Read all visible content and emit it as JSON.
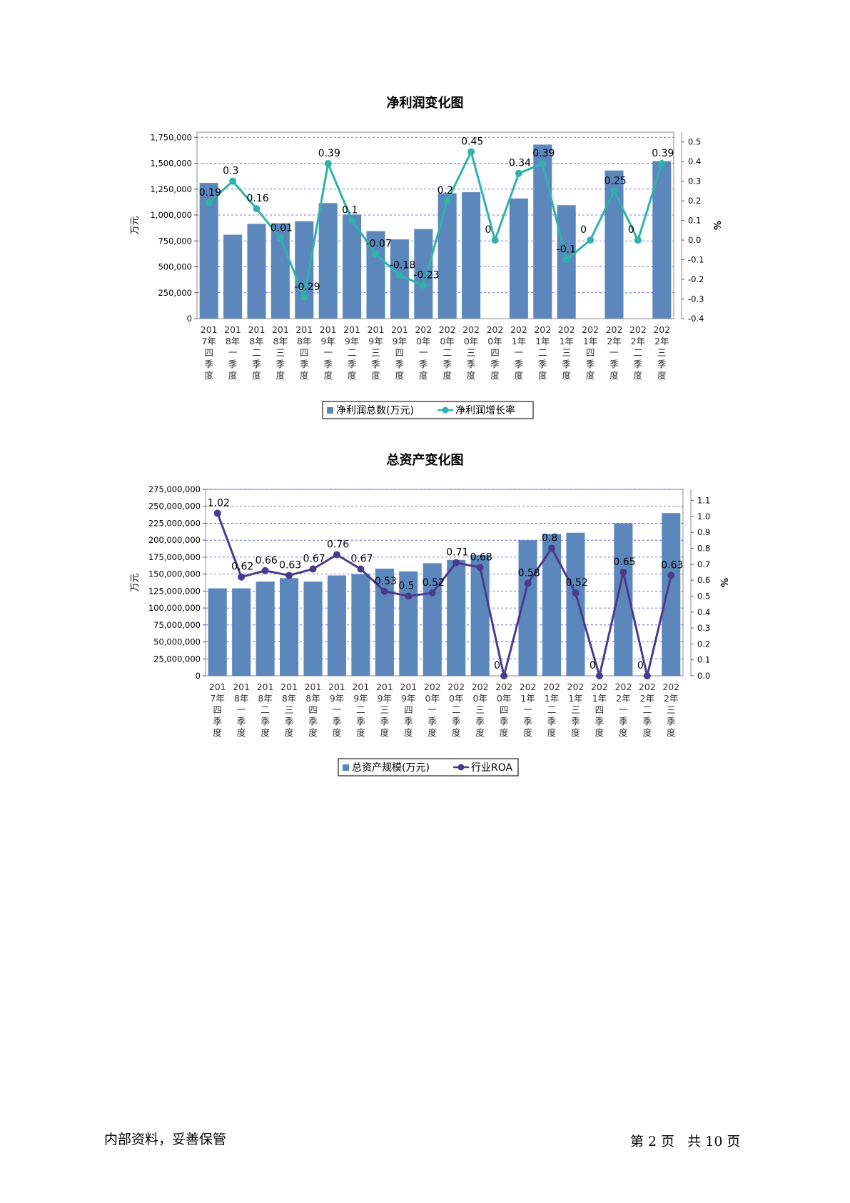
{
  "chart_data": [
    {
      "type": "bar",
      "title": "净利润变化图",
      "ylabel": "万元",
      "y2label": "%",
      "categories": [
        "2017年四季度",
        "2018年一季度",
        "2018年二季度",
        "2018年三季度",
        "2018年四季度",
        "2019年一季度",
        "2019年二季度",
        "2019年三季度",
        "2019年四季度",
        "2020年一季度",
        "2020年二季度",
        "2020年三季度",
        "2020年四季度",
        "2021年一季度",
        "2021年二季度",
        "2021年三季度",
        "2021年四季度",
        "2022年一季度",
        "2022年二季度",
        "2022年三季度"
      ],
      "category_lines": [
        [
          "201",
          "7年",
          "四",
          "季",
          "度"
        ],
        [
          "201",
          "8年",
          "一",
          "季",
          "度"
        ],
        [
          "201",
          "8年",
          "二",
          "季",
          "度"
        ],
        [
          "201",
          "8年",
          "三",
          "季",
          "度"
        ],
        [
          "201",
          "8年",
          "四",
          "季",
          "度"
        ],
        [
          "201",
          "9年",
          "一",
          "季",
          "度"
        ],
        [
          "201",
          "9年",
          "二",
          "季",
          "度"
        ],
        [
          "201",
          "9年",
          "三",
          "季",
          "度"
        ],
        [
          "201",
          "9年",
          "四",
          "季",
          "度"
        ],
        [
          "202",
          "0年",
          "一",
          "季",
          "度"
        ],
        [
          "202",
          "0年",
          "二",
          "季",
          "度"
        ],
        [
          "202",
          "0年",
          "三",
          "季",
          "度"
        ],
        [
          "202",
          "0年",
          "四",
          "季",
          "度"
        ],
        [
          "202",
          "1年",
          "一",
          "季",
          "度"
        ],
        [
          "202",
          "1年",
          "二",
          "季",
          "度"
        ],
        [
          "202",
          "1年",
          "三",
          "季",
          "度"
        ],
        [
          "202",
          "1年",
          "四",
          "季",
          "度"
        ],
        [
          "202",
          "2年",
          "一",
          "季",
          "度"
        ],
        [
          "202",
          "2年",
          "二",
          "季",
          "度"
        ],
        [
          "202",
          "2年",
          "三",
          "季",
          "度"
        ]
      ],
      "ylim": [
        0,
        1800000
      ],
      "y_ticks": [
        "0",
        "250,000",
        "500,000",
        "750,000",
        "1,000,000",
        "1,250,000",
        "1,500,000",
        "1,750,000"
      ],
      "y_tick_values": [
        0,
        250000,
        500000,
        750000,
        1000000,
        1250000,
        1500000,
        1750000
      ],
      "y2lim": [
        -0.4,
        0.55
      ],
      "y2_ticks": [
        "-0.4",
        "-0.3",
        "-0.2",
        "-0.1",
        "0.0",
        "0.1",
        "0.2",
        "0.3",
        "0.4",
        "0.5"
      ],
      "y2_tick_values": [
        -0.4,
        -0.3,
        -0.2,
        -0.1,
        0.0,
        0.1,
        0.2,
        0.3,
        0.4,
        0.5
      ],
      "series": [
        {
          "name": "净利润总数(万元)",
          "kind": "bar",
          "color": "#5b87bd",
          "values": [
            1310000,
            810000,
            915000,
            920000,
            940000,
            1115000,
            1005000,
            845000,
            765000,
            865000,
            1210000,
            1220000,
            0,
            1160000,
            1680000,
            1095000,
            0,
            1430000,
            0,
            1520000
          ]
        },
        {
          "name": "净利润增长率",
          "kind": "line",
          "color": "#2db3aa",
          "values": [
            0.19,
            0.3,
            0.16,
            0.01,
            -0.29,
            0.39,
            0.1,
            -0.07,
            -0.18,
            -0.23,
            0.2,
            0.45,
            0,
            0.34,
            0.39,
            -0.1,
            0,
            0.25,
            0,
            0.39
          ],
          "labels": [
            "0.19",
            "0.3",
            "0.16",
            "0.01",
            "-0.29",
            "0.39",
            "0.1",
            "-0.07",
            "-0.18",
            "-0.23",
            "0.2",
            "0.45",
            "0",
            "0.34",
            "0.39",
            "-0.1",
            "0",
            "0.25",
            "0",
            "0.39"
          ]
        }
      ],
      "grid": true,
      "legend": "bottom"
    },
    {
      "type": "bar",
      "title": "总资产变化图",
      "ylabel": "万元",
      "y2label": "%",
      "categories": [
        "2017年四季度",
        "2018年一季度",
        "2018年二季度",
        "2018年三季度",
        "2018年四季度",
        "2019年一季度",
        "2019年二季度",
        "2019年三季度",
        "2019年四季度",
        "2020年一季度",
        "2020年二季度",
        "2020年三季度",
        "2020年四季度",
        "2021年一季度",
        "2021年二季度",
        "2021年三季度",
        "2021年四季度",
        "2022年一季度",
        "2022年二季度",
        "2022年三季度"
      ],
      "category_lines": [
        [
          "201",
          "7年",
          "四",
          "季",
          "度"
        ],
        [
          "201",
          "8年",
          "一",
          "季",
          "度"
        ],
        [
          "201",
          "8年",
          "二",
          "季",
          "度"
        ],
        [
          "201",
          "8年",
          "三",
          "季",
          "度"
        ],
        [
          "201",
          "8年",
          "四",
          "季",
          "度"
        ],
        [
          "201",
          "9年",
          "一",
          "季",
          "度"
        ],
        [
          "201",
          "9年",
          "二",
          "季",
          "度"
        ],
        [
          "201",
          "9年",
          "三",
          "季",
          "度"
        ],
        [
          "201",
          "9年",
          "四",
          "季",
          "度"
        ],
        [
          "202",
          "0年",
          "一",
          "季",
          "度"
        ],
        [
          "202",
          "0年",
          "二",
          "季",
          "度"
        ],
        [
          "202",
          "0年",
          "三",
          "季",
          "度"
        ],
        [
          "202",
          "0年",
          "四",
          "季",
          "度"
        ],
        [
          "202",
          "1年",
          "一",
          "季",
          "度"
        ],
        [
          "202",
          "1年",
          "二",
          "季",
          "度"
        ],
        [
          "202",
          "1年",
          "三",
          "季",
          "度"
        ],
        [
          "202",
          "1年",
          "四",
          "季",
          "度"
        ],
        [
          "202",
          "2年",
          "一",
          "季",
          "度"
        ],
        [
          "202",
          "2年",
          "二",
          "季",
          "度"
        ],
        [
          "202",
          "2年",
          "三",
          "季",
          "度"
        ]
      ],
      "ylim": [
        0,
        275000000
      ],
      "y_ticks": [
        "0",
        "25,000,000",
        "50,000,000",
        "75,000,000",
        "100,000,000",
        "125,000,000",
        "150,000,000",
        "175,000,000",
        "200,000,000",
        "225,000,000",
        "250,000,000",
        "275,000,000"
      ],
      "y_tick_values": [
        0,
        25000000,
        50000000,
        75000000,
        100000000,
        125000000,
        150000000,
        175000000,
        200000000,
        225000000,
        250000000,
        275000000
      ],
      "y2lim": [
        0.0,
        1.17
      ],
      "y2_ticks": [
        "0.0",
        "0.1",
        "0.2",
        "0.3",
        "0.4",
        "0.5",
        "0.6",
        "0.7",
        "0.8",
        "0.9",
        "1.0",
        "1.1"
      ],
      "y2_tick_values": [
        0.0,
        0.1,
        0.2,
        0.3,
        0.4,
        0.5,
        0.6,
        0.7,
        0.8,
        0.9,
        1.0,
        1.1
      ],
      "series": [
        {
          "name": "总资产规模(万元)",
          "kind": "bar",
          "color": "#5b87bd",
          "values": [
            129000000,
            129000000,
            139000000,
            144000000,
            139000000,
            148000000,
            150000000,
            158000000,
            154000000,
            166000000,
            171000000,
            178000000,
            0,
            200000000,
            209000000,
            211000000,
            0,
            225000000,
            0,
            240000000
          ]
        },
        {
          "name": "行业ROA",
          "kind": "line",
          "color": "#4b3a8c",
          "values": [
            1.02,
            0.62,
            0.66,
            0.63,
            0.67,
            0.76,
            0.67,
            0.53,
            0.5,
            0.52,
            0.71,
            0.68,
            0,
            0.58,
            0.8,
            0.52,
            0,
            0.65,
            0,
            0.63
          ],
          "labels": [
            "1.02",
            "0.62",
            "0.66",
            "0.63",
            "0.67",
            "0.76",
            "0.67",
            "0.53",
            "0.5",
            "0.52",
            "0.71",
            "0.68",
            "0",
            "0.58",
            "0.8",
            "0.52",
            "0",
            "0.65",
            "0",
            "0.63"
          ]
        }
      ],
      "grid": true,
      "legend": "bottom"
    }
  ],
  "footer": {
    "left": "内部资料，妥善保管",
    "page_word_1": "第",
    "page_number": "2",
    "page_word_2": "页",
    "total_word": "共",
    "total_pages": "10",
    "page_word_3": "页"
  }
}
